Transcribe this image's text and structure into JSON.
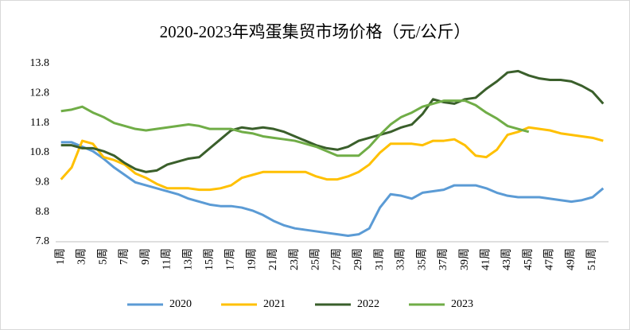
{
  "chart_data": {
    "type": "line",
    "title": "2020-2023年鸡蛋集贸市场价格（元/公斤）",
    "categories": [
      "1周",
      null,
      "3周",
      null,
      "5周",
      null,
      "7周",
      null,
      "9周",
      null,
      "11周",
      null,
      "13周",
      null,
      "15周",
      null,
      "17周",
      null,
      "19周",
      null,
      "21周",
      null,
      "23周",
      null,
      "25周",
      null,
      "27周",
      null,
      "29周",
      null,
      "31周",
      null,
      "33周",
      null,
      "35周",
      null,
      "37周",
      null,
      "39周",
      null,
      "41周",
      null,
      "43周",
      null,
      "45周",
      null,
      "47周",
      null,
      "49周",
      null,
      "51周",
      null
    ],
    "series": [
      {
        "name": "2020",
        "color": "#5b9bd5",
        "values": [
          11.15,
          11.15,
          11.0,
          10.85,
          10.6,
          10.3,
          10.05,
          9.8,
          9.7,
          9.6,
          9.5,
          9.4,
          9.25,
          9.15,
          9.05,
          9.0,
          9.0,
          8.95,
          8.85,
          8.7,
          8.5,
          8.35,
          8.25,
          8.2,
          8.15,
          8.1,
          8.05,
          8.0,
          8.05,
          8.25,
          8.95,
          9.4,
          9.35,
          9.25,
          9.45,
          9.5,
          9.55,
          9.7,
          9.7,
          9.7,
          9.6,
          9.45,
          9.35,
          9.3,
          9.3,
          9.3,
          9.25,
          9.2,
          9.15,
          9.2,
          9.3,
          9.6
        ]
      },
      {
        "name": "2021",
        "color": "#ffc000",
        "values": [
          9.9,
          10.3,
          11.2,
          11.1,
          10.65,
          10.55,
          10.4,
          10.1,
          9.95,
          9.75,
          9.6,
          9.6,
          9.6,
          9.55,
          9.55,
          9.6,
          9.7,
          9.95,
          10.05,
          10.15,
          10.15,
          10.15,
          10.15,
          10.15,
          10.0,
          9.9,
          9.9,
          10.0,
          10.15,
          10.4,
          10.8,
          11.1,
          11.1,
          11.1,
          11.05,
          11.2,
          11.2,
          11.25,
          11.05,
          10.7,
          10.65,
          10.9,
          11.4,
          11.5,
          11.65,
          11.6,
          11.55,
          11.45,
          11.4,
          11.35,
          11.3,
          11.2
        ]
      },
      {
        "name": "2022",
        "color": "#3a5f2b",
        "values": [
          11.05,
          11.05,
          10.95,
          10.95,
          10.85,
          10.7,
          10.45,
          10.25,
          10.15,
          10.2,
          10.4,
          10.5,
          10.6,
          10.65,
          10.95,
          11.25,
          11.55,
          11.65,
          11.6,
          11.65,
          11.6,
          11.5,
          11.35,
          11.2,
          11.05,
          10.95,
          10.9,
          11.0,
          11.2,
          11.3,
          11.4,
          11.5,
          11.65,
          11.75,
          12.1,
          12.6,
          12.5,
          12.45,
          12.6,
          12.65,
          12.95,
          13.2,
          13.5,
          13.55,
          13.4,
          13.3,
          13.25,
          13.25,
          13.2,
          13.05,
          12.85,
          12.45
        ]
      },
      {
        "name": "2023",
        "color": "#70ad47",
        "values": [
          12.2,
          12.25,
          12.35,
          12.15,
          12.0,
          11.8,
          11.7,
          11.6,
          11.55,
          11.6,
          11.65,
          11.7,
          11.75,
          11.7,
          11.6,
          11.6,
          11.6,
          11.5,
          11.45,
          11.35,
          11.3,
          11.25,
          11.2,
          11.1,
          11.0,
          10.85,
          10.7,
          10.7,
          10.7,
          11.0,
          11.4,
          11.75,
          12.0,
          12.15,
          12.35,
          12.45,
          12.55,
          12.55,
          12.55,
          12.4,
          12.15,
          11.95,
          11.7,
          11.6,
          11.5,
          null,
          null,
          null,
          null,
          null,
          null,
          null
        ]
      }
    ],
    "ylim": [
      7.8,
      13.8
    ],
    "yticks": [
      7.8,
      8.8,
      9.8,
      10.8,
      11.8,
      12.8,
      13.8
    ],
    "grid": false,
    "legend": "bottom"
  }
}
